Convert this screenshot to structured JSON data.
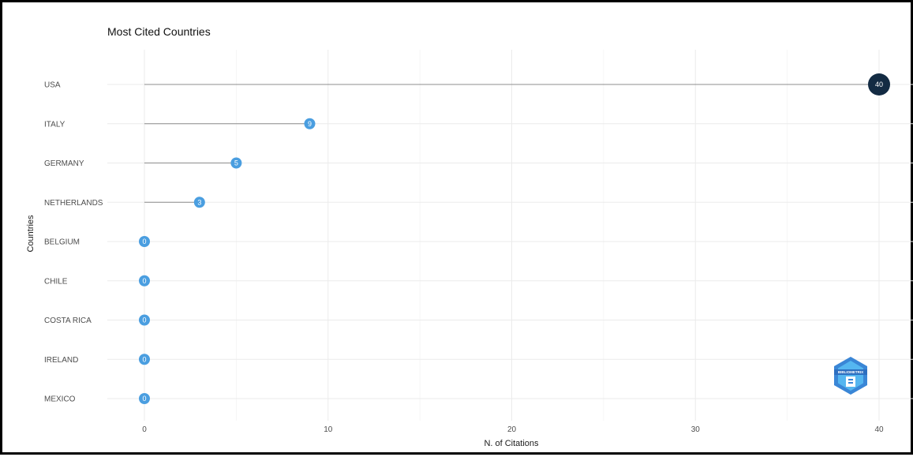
{
  "chart_data": {
    "type": "lollipop",
    "title": "Most Cited Countries",
    "xlabel": "N. of Citations",
    "ylabel": "Countries",
    "categories": [
      "USA",
      "ITALY",
      "GERMANY",
      "NETHERLANDS",
      "BELGIUM",
      "CHILE",
      "COSTA RICA",
      "IRELAND",
      "MEXICO"
    ],
    "values": [
      40,
      9,
      5,
      3,
      0,
      0,
      0,
      0,
      0
    ],
    "xlim": [
      -2,
      41
    ],
    "xticks": [
      0,
      10,
      20,
      30,
      40
    ],
    "grid": true,
    "colors": {
      "max_point": "#132b43",
      "point": "#4a9ee0",
      "segment": "#8c8c8c",
      "grid": "#ebebeb"
    }
  },
  "logo": {
    "text": "BIBLIOMETRIX",
    "color": "#3a86d6"
  }
}
